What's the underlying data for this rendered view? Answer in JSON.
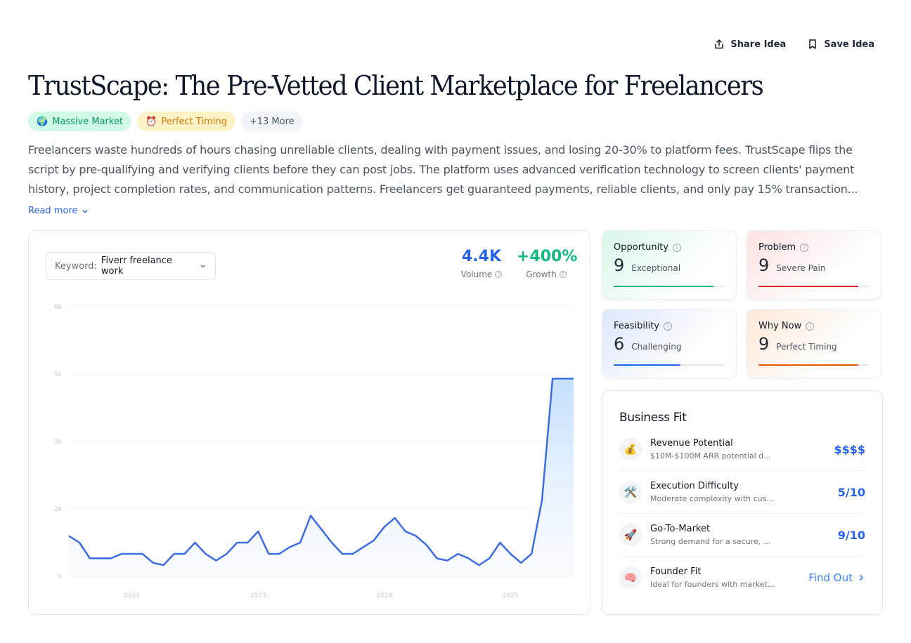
{
  "actions": {
    "share": "Share Idea",
    "save": "Save Idea"
  },
  "title": "TrustScape: The Pre-Vetted Client Marketplace for Freelancers",
  "tags": [
    {
      "emoji": "🌍",
      "label": "Massive Market"
    },
    {
      "emoji": "⏰",
      "label": "Perfect Timing"
    },
    {
      "label": "+13 More"
    }
  ],
  "description": "Freelancers waste hundreds of hours chasing unreliable clients, dealing with payment issues, and losing 20-30% to platform fees. TrustScape flips the script by pre-qualifying and verifying clients before they can post jobs. The platform uses advanced verification technology to screen clients' payment history, project completion rates, and communication patterns. Freelancers get guaranteed payments, reliable clients, and only pay 15% transaction...",
  "read_more": "Read more",
  "keyword": {
    "label": "Keyword:",
    "value": "Fiverr freelance work"
  },
  "stats": {
    "volume": {
      "value": "4.4K",
      "label": "Volume",
      "color": "#2563eb"
    },
    "growth": {
      "value": "+400%",
      "label": "Growth",
      "color": "#10b981"
    }
  },
  "chart_data": {
    "type": "area",
    "y_ticks": [
      "0",
      "2k",
      "3k",
      "5k",
      "6k"
    ],
    "x_ticks": [
      "2022",
      "2023",
      "2024",
      "2025"
    ],
    "x": [
      "2021-07",
      "2021-08",
      "2021-09",
      "2021-10",
      "2021-11",
      "2021-12",
      "2022-01",
      "2022-02",
      "2022-03",
      "2022-04",
      "2022-05",
      "2022-06",
      "2022-07",
      "2022-08",
      "2022-09",
      "2022-10",
      "2022-11",
      "2022-12",
      "2023-01",
      "2023-02",
      "2023-03",
      "2023-04",
      "2023-05",
      "2023-06",
      "2023-07",
      "2023-08",
      "2023-09",
      "2023-10",
      "2023-11",
      "2023-12",
      "2024-01",
      "2024-02",
      "2024-03",
      "2024-04",
      "2024-05",
      "2024-06",
      "2024-07",
      "2024-08",
      "2024-09",
      "2024-10",
      "2024-11",
      "2024-12",
      "2025-01",
      "2025-02",
      "2025-03",
      "2025-04",
      "2025-05",
      "2025-06",
      "2025-07"
    ],
    "values": [
      900,
      750,
      400,
      400,
      400,
      500,
      500,
      500,
      300,
      250,
      500,
      500,
      750,
      500,
      350,
      500,
      750,
      750,
      1000,
      500,
      500,
      650,
      750,
      1350,
      1050,
      750,
      500,
      500,
      650,
      800,
      1100,
      1300,
      1000,
      900,
      700,
      400,
      350,
      500,
      400,
      250,
      400,
      750,
      500,
      300,
      500,
      1700,
      4400,
      4400,
      4400
    ],
    "color": "#3b6de0",
    "grid": true
  },
  "scores": [
    {
      "name": "Opportunity",
      "value": "9",
      "label": "Exceptional",
      "fill": 0.9,
      "color": "#10b981"
    },
    {
      "name": "Problem",
      "value": "9",
      "label": "Severe Pain",
      "fill": 0.9,
      "color": "#dc2626"
    },
    {
      "name": "Feasibility",
      "value": "6",
      "label": "Challenging",
      "fill": 0.6,
      "color": "#2563eb"
    },
    {
      "name": "Why Now",
      "value": "9",
      "label": "Perfect Timing",
      "fill": 0.9,
      "color": "#ea580c"
    }
  ],
  "business_fit": {
    "title": "Business Fit",
    "items": [
      {
        "emoji": "💰",
        "name": "Revenue Potential",
        "desc": "$10M-$100M ARR potential d...",
        "value": "$$$$"
      },
      {
        "emoji": "🛠️",
        "name": "Execution Difficulty",
        "desc": "Moderate complexity with cust...",
        "value": "5/10"
      },
      {
        "emoji": "🚀",
        "name": "Go-To-Market",
        "desc": "Strong demand for a secure, pr...",
        "value": "9/10"
      },
      {
        "emoji": "🧠",
        "name": "Founder Fit",
        "desc": "Ideal for founders with market...",
        "value": "Find Out"
      }
    ]
  }
}
